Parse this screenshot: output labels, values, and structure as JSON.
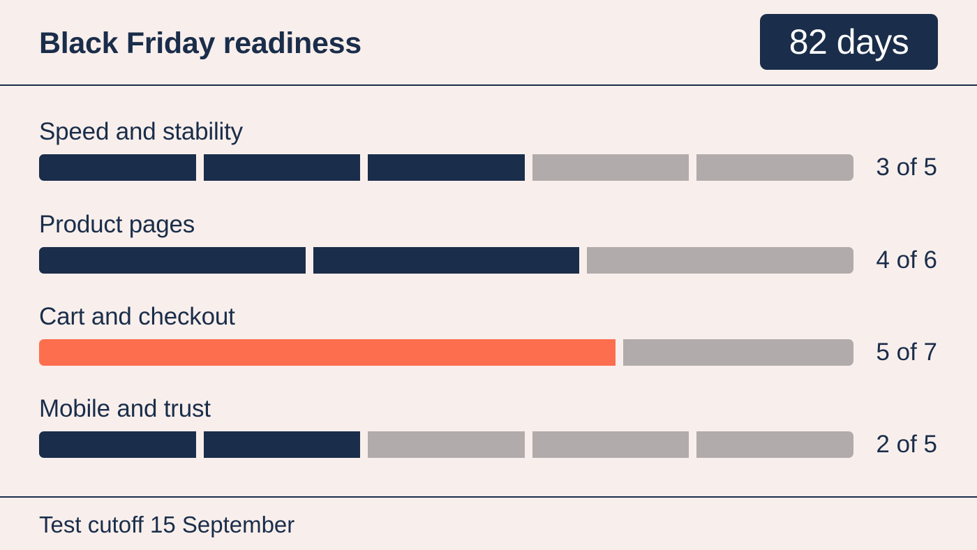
{
  "header": {
    "title": "Black Friday readiness",
    "countdown": "82 days"
  },
  "sections": [
    {
      "label": "Speed and stability",
      "completed": 3,
      "total": 5,
      "count_text": "3 of 5",
      "alert": false
    },
    {
      "label": "Product pages",
      "completed": 4,
      "total": 6,
      "count_text": "4 of 6",
      "alert": false
    },
    {
      "label": "Cart and checkout",
      "completed": 5,
      "total": 7,
      "count_text": "5 of 7",
      "alert": true
    },
    {
      "label": "Mobile and trust",
      "completed": 2,
      "total": 5,
      "count_text": "2 of 5",
      "alert": false
    }
  ],
  "footer": {
    "note": "Test cutoff 15 September"
  },
  "colors": {
    "background": "#f8efec",
    "complete": "#1a2d4a",
    "alert": "#fd6e4e",
    "remaining": "#b1abab"
  }
}
